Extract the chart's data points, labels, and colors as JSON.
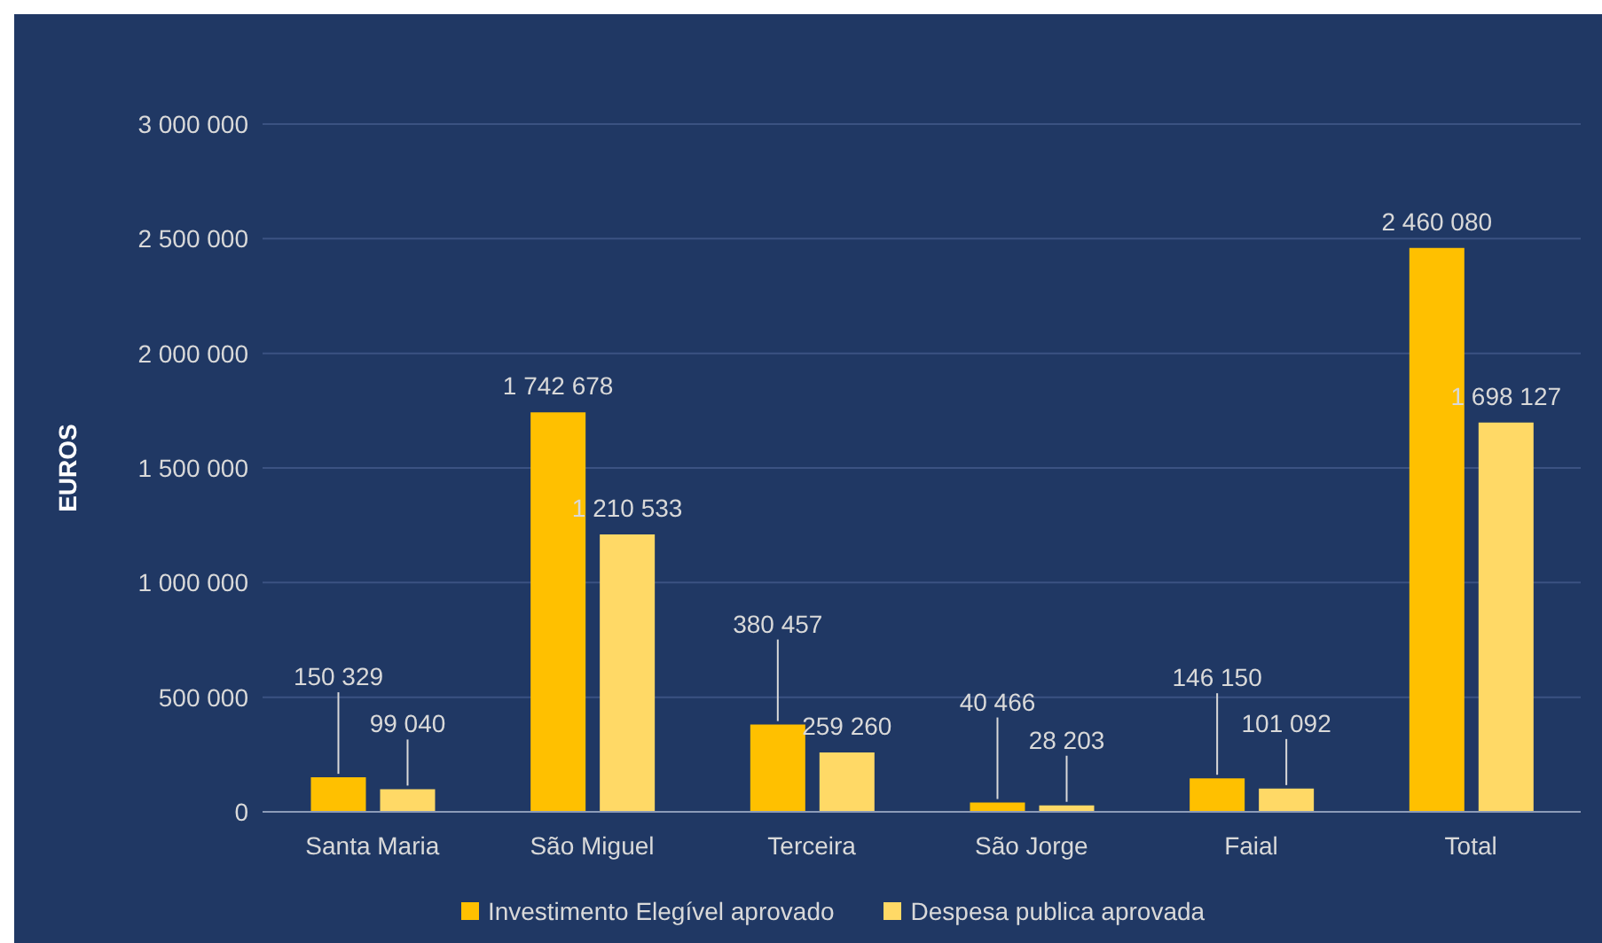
{
  "chart_data": {
    "type": "bar",
    "ylabel": "EUROS",
    "categories": [
      "Santa Maria",
      "São Miguel",
      "Terceira",
      "São Jorge",
      "Faial",
      "Total"
    ],
    "series": [
      {
        "name": "Investimento Elegível aprovado",
        "color": "#ffc000",
        "values": [
          150329,
          1742678,
          380457,
          40466,
          146150,
          2460080
        ],
        "value_labels": [
          "150 329",
          "1 742 678",
          "380 457",
          "40 466",
          "146 150",
          "2 460 080"
        ]
      },
      {
        "name": "Despesa publica aprovada",
        "color": "#ffd966",
        "values": [
          99040,
          1210533,
          259260,
          28203,
          101092,
          1698127
        ],
        "value_labels": [
          "99 040",
          "1 210 533",
          "259 260",
          "28 203",
          "101 092",
          "1 698 127"
        ]
      }
    ],
    "ylim": [
      0,
      3000000
    ],
    "yticks": [
      {
        "value": 0,
        "label": "0"
      },
      {
        "value": 500000,
        "label": "500 000"
      },
      {
        "value": 1000000,
        "label": "1 000 000"
      },
      {
        "value": 1500000,
        "label": "1 500 000"
      },
      {
        "value": 2000000,
        "label": "2 000 000"
      },
      {
        "value": 2500000,
        "label": "2 500 000"
      },
      {
        "value": 3000000,
        "label": "3 000 000"
      }
    ],
    "grid": "y",
    "legend": "bottom"
  }
}
